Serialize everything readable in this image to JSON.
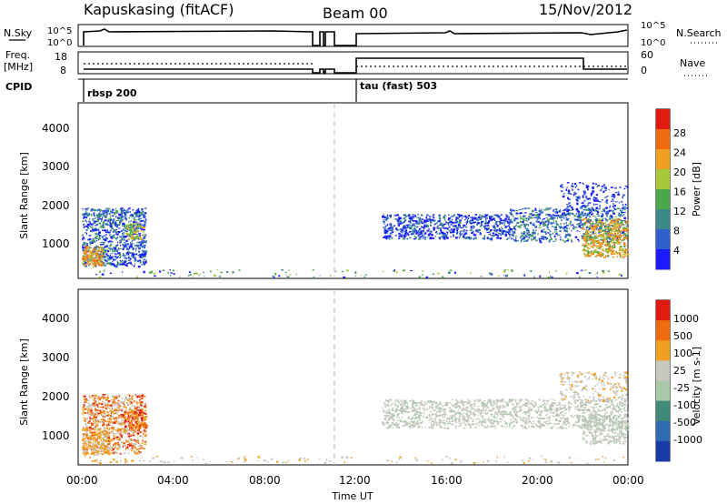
{
  "header": {
    "station": "Kapuskasing (fitACF)",
    "beam": "Beam 00",
    "date": "15/Nov/2012"
  },
  "status_panels": {
    "nsky_label": "N.Sky",
    "nsky_ticks": [
      "10^5",
      "10^0"
    ],
    "nsearch_label": "N.Search",
    "nsearch_ticks": [
      "10^5",
      "10^0"
    ],
    "freq_label_1": "Freq.",
    "freq_label_2": "[MHz]",
    "freq_ticks": [
      "18",
      "8"
    ],
    "nave_label": "Nave",
    "nave_ticks": [
      "60",
      "0"
    ],
    "cpid_label": "CPID",
    "cpid_entries": [
      "rbsp 200",
      "tau (fast) 503"
    ]
  },
  "chart_data": [
    {
      "type": "heatmap",
      "name": "power",
      "ylabel": "Slant Range [km]",
      "xlabel": "",
      "colorbar_label": "Power [dB]",
      "ylim": [
        180,
        4600
      ],
      "y_ticks": [
        "1000",
        "2000",
        "3000",
        "4000"
      ],
      "colorbar_ticks": [
        "28",
        "24",
        "20",
        "16",
        "12",
        "8",
        "4"
      ],
      "colors": [
        "#1a1aff",
        "#2f5fcc",
        "#3a8a8a",
        "#4aa84a",
        "#a6c83a",
        "#f0a020",
        "#f06a10",
        "#e21a10"
      ]
    },
    {
      "type": "heatmap",
      "name": "velocity",
      "ylabel": "Slant Range [km]",
      "xlabel": "Time UT",
      "colorbar_label": "Velocity [m s-1]",
      "ylim": [
        180,
        4600
      ],
      "y_ticks": [
        "1000",
        "2000",
        "3000",
        "4000"
      ],
      "x_ticks": [
        "00:00",
        "04:00",
        "08:00",
        "12:00",
        "16:00",
        "20:00",
        "00:00"
      ],
      "colorbar_ticks": [
        "1000",
        "500",
        "100",
        "25",
        "-25",
        "-100",
        "-500",
        "-1000"
      ],
      "colors": [
        "#1a3aa8",
        "#2f6bb0",
        "#3f8a7a",
        "#a8c8a8",
        "#c8c8c0",
        "#f0a020",
        "#f06a10",
        "#e21a10"
      ]
    }
  ]
}
